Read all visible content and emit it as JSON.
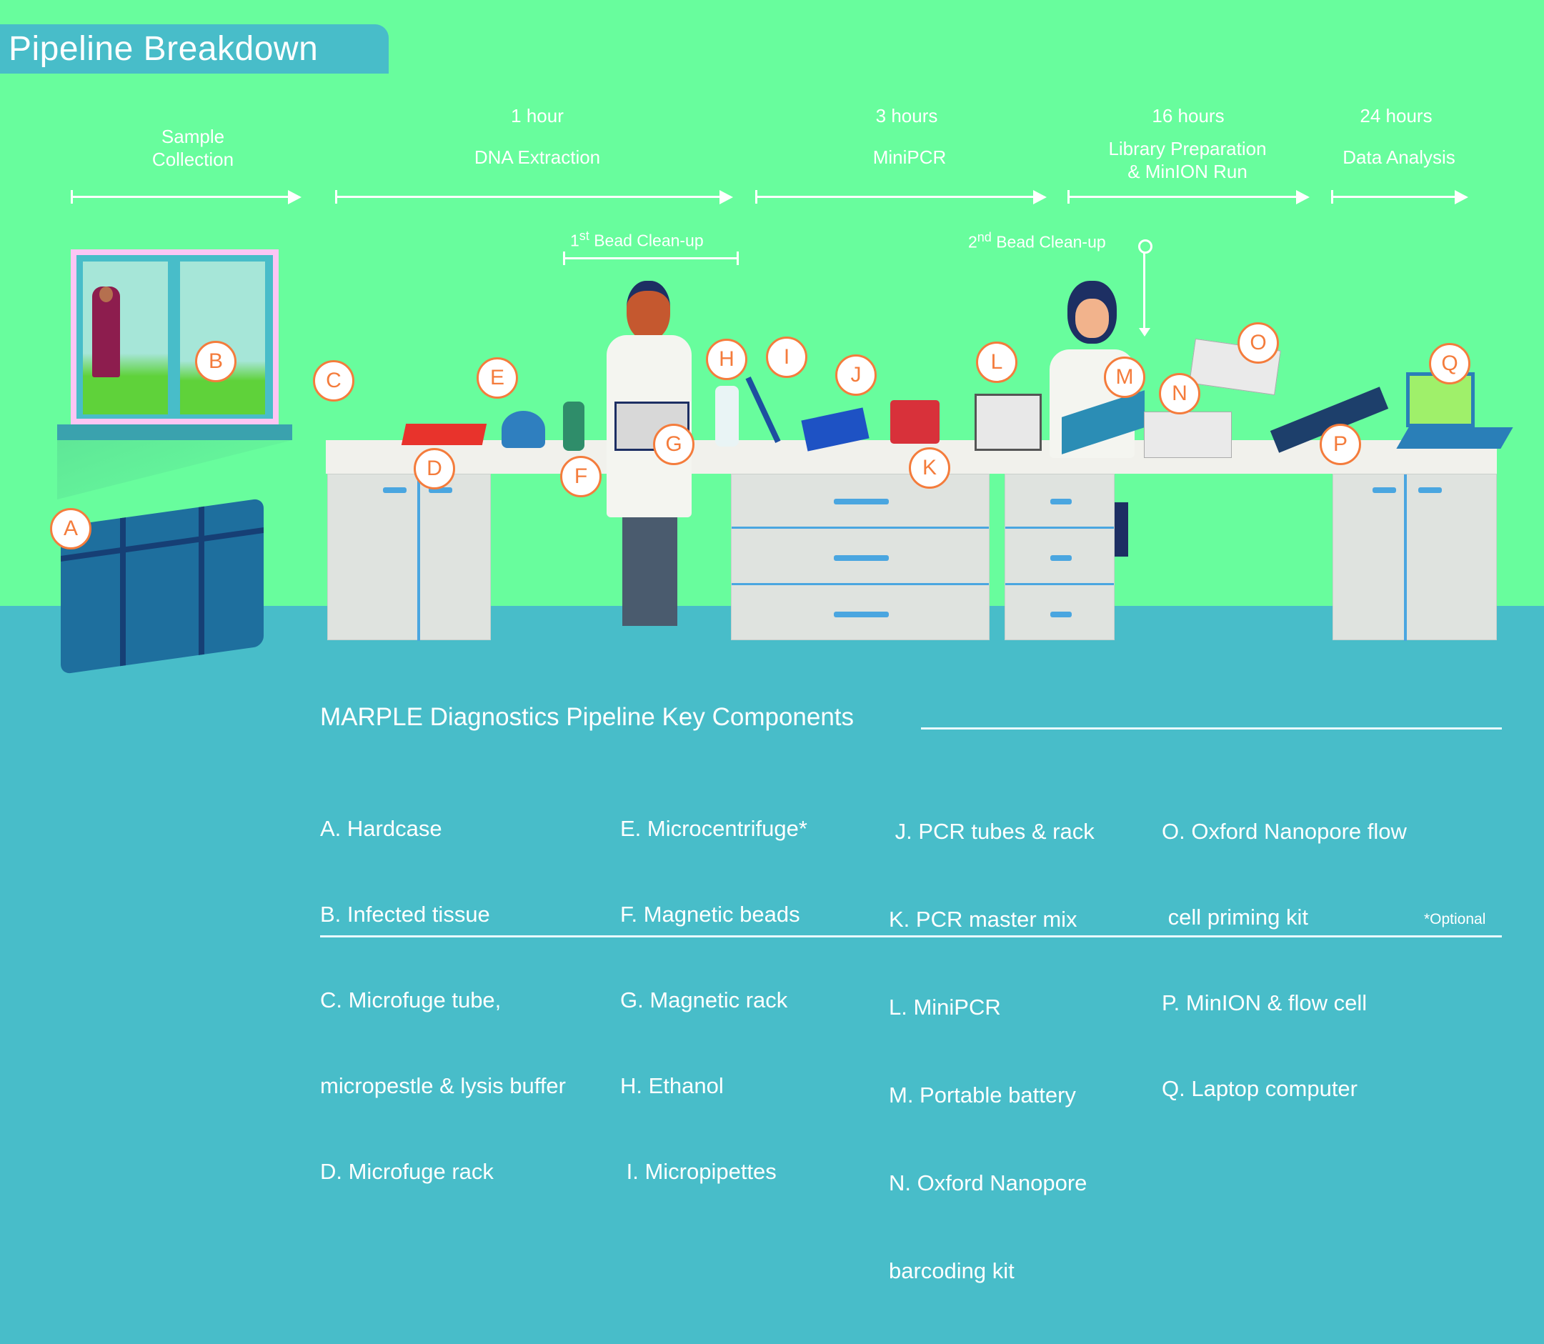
{
  "header": {
    "title": "Pipeline Breakdown"
  },
  "timeline": [
    {
      "duration": "",
      "stage": "Sample\nCollection"
    },
    {
      "duration": "1 hour",
      "stage": "DNA Extraction"
    },
    {
      "duration": "3 hours",
      "stage": "MiniPCR"
    },
    {
      "duration": "16 hours",
      "stage": "Library Preparation\n& MinION Run"
    },
    {
      "duration": "24 hours",
      "stage": "Data Analysis"
    }
  ],
  "cleanups": [
    {
      "ordinal": "1",
      "suffix": "st",
      "label": " Bead Clean-up"
    },
    {
      "ordinal": "2",
      "suffix": "nd",
      "label": " Bead Clean-up"
    }
  ],
  "markers": [
    "A",
    "B",
    "C",
    "D",
    "E",
    "F",
    "G",
    "H",
    "I",
    "J",
    "K",
    "L",
    "M",
    "N",
    "O",
    "P",
    "Q"
  ],
  "key": {
    "title": "MARPLE Diagnostics Pipeline Key Components",
    "columns": [
      [
        "A. Hardcase",
        "B. Infected tissue",
        "C. Microfuge tube,",
        "micropestle & lysis buffer",
        "D. Microfuge rack"
      ],
      [
        "E. Microcentrifuge*",
        "F. Magnetic beads",
        "G. Magnetic rack",
        "H. Ethanol",
        " I. Micropipettes"
      ],
      [
        " J. PCR tubes & rack",
        "K. PCR master mix",
        "L. MiniPCR",
        "M. Portable battery",
        "N. Oxford Nanopore",
        "barcoding kit"
      ],
      [
        "O. Oxford Nanopore flow",
        " cell priming kit",
        "P. MinION & flow cell",
        "Q. Laptop computer"
      ]
    ],
    "footnote": "*Optional"
  },
  "colors": {
    "background": "#68fd9d",
    "floor": "#48bdc9",
    "marker": "#f47c3c",
    "hardcase": "#1e5f8e"
  }
}
